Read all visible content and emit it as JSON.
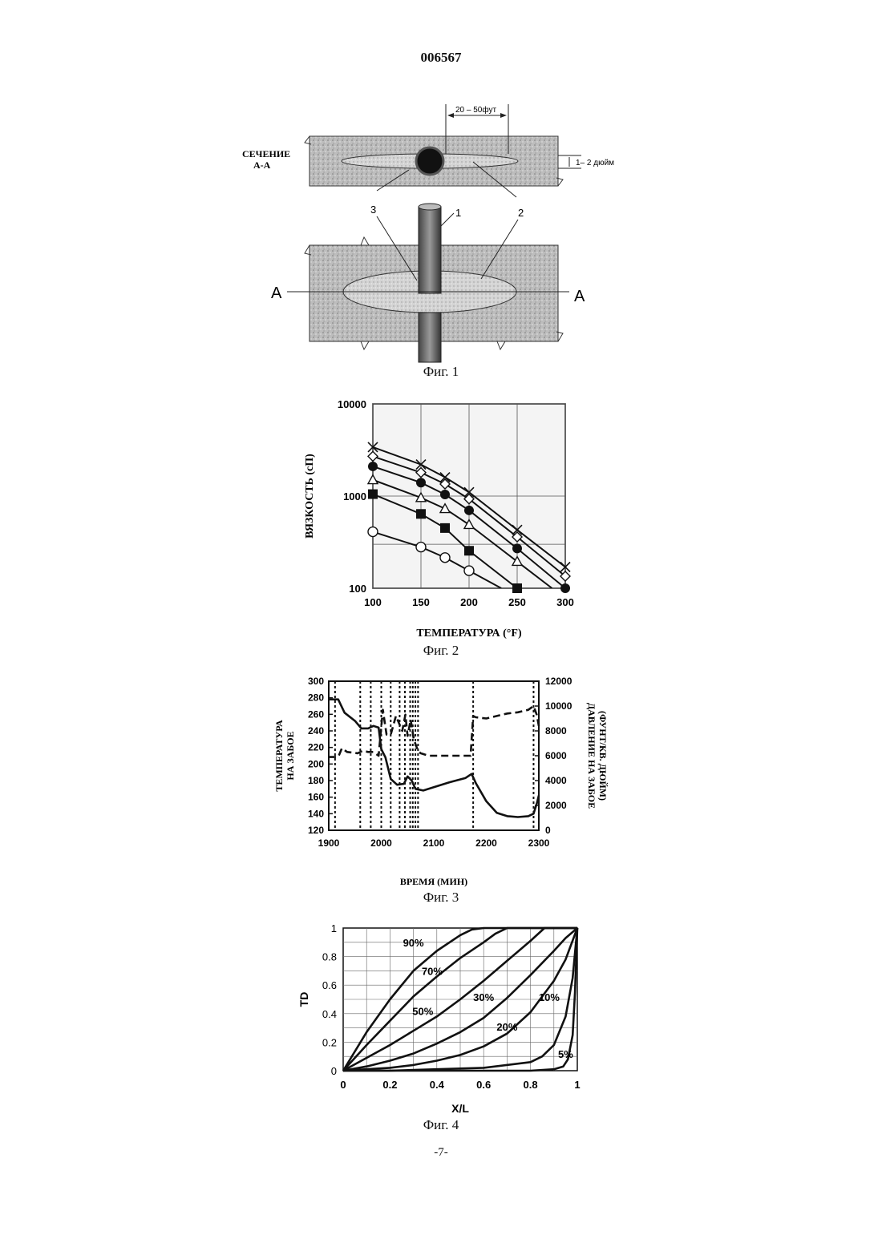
{
  "page": {
    "number": "006567",
    "footer": "-7-"
  },
  "fig1": {
    "caption": "Фиг. 1",
    "section_label": [
      "СЕЧЕНИЕ",
      "А-А"
    ],
    "dim_length": "20 – 50фут",
    "dim_thickness": "1– 2 дюйм",
    "callouts": [
      "1",
      "2",
      "3",
      "2"
    ],
    "section_marks": [
      "A",
      "A"
    ]
  },
  "fig2": {
    "caption": "Фиг. 2",
    "chart_data": {
      "type": "scatter",
      "xlabel": "ТЕМПЕРАТУРА (°F)",
      "ylabel": "ВЯЗКОСТЬ (сП)",
      "xlim": [
        100,
        300
      ],
      "ylim": [
        100,
        10000
      ],
      "yscale": "log",
      "xticks": [
        "100",
        "150",
        "200",
        "250",
        "300"
      ],
      "yticks": [
        "100",
        "1000",
        "10000"
      ],
      "grid": true,
      "series": [
        {
          "marker": "cross",
          "x": [
            100,
            150,
            175,
            200,
            250,
            300
          ],
          "y": [
            3400,
            2200,
            1600,
            1100,
            430,
            170
          ]
        },
        {
          "marker": "diamond-open",
          "x": [
            100,
            150,
            175,
            200,
            250,
            300
          ],
          "y": [
            2700,
            1800,
            1350,
            930,
            360,
            135
          ]
        },
        {
          "marker": "circle-filled",
          "x": [
            100,
            150,
            175,
            200,
            250,
            300
          ],
          "y": [
            2100,
            1400,
            1040,
            700,
            270,
            100
          ]
        },
        {
          "marker": "triangle-open",
          "x": [
            100,
            150,
            175,
            200,
            250
          ],
          "y": [
            1500,
            960,
            730,
            490,
            195
          ]
        },
        {
          "marker": "square-filled",
          "x": [
            100,
            150,
            175,
            200,
            250
          ],
          "y": [
            1050,
            640,
            450,
            255,
            100
          ]
        },
        {
          "marker": "circle-open",
          "x": [
            100,
            150,
            175,
            200
          ],
          "y": [
            410,
            280,
            215,
            155
          ]
        }
      ]
    }
  },
  "fig3": {
    "caption": "Фиг. 3",
    "chart_data": {
      "type": "line",
      "xlabel": "ВРЕМЯ (МИН)",
      "ylabel_left": [
        "ТЕМПЕРАТУРА",
        "НА ЗАБОЕ"
      ],
      "ylabel_right": [
        "ДАВЛЕНИЕ НА ЗАБОЕ",
        "(ФУНТ/КВ. ДЮЙМ)"
      ],
      "xlim": [
        1900,
        2300
      ],
      "ylim_left": [
        120,
        300
      ],
      "ylim_right": [
        0,
        12000
      ],
      "xticks": [
        "1900",
        "2000",
        "2100",
        "2200",
        "2300"
      ],
      "yticks_left": [
        "120",
        "140",
        "160",
        "180",
        "200",
        "220",
        "240",
        "260",
        "280",
        "300"
      ],
      "yticks_right": [
        "0",
        "2000",
        "4000",
        "6000",
        "8000",
        "10000",
        "12000"
      ],
      "event_lines_x": [
        1912,
        1960,
        1980,
        2000,
        2018,
        2035,
        2045,
        2055,
        2060,
        2065,
        2070,
        2175,
        2290
      ],
      "series": [
        {
          "name": "temperature",
          "axis": "left",
          "style": "solid",
          "x": [
            1900,
            1918,
            1930,
            1950,
            1962,
            1975,
            1985,
            1995,
            2000,
            2008,
            2018,
            2030,
            2043,
            2050,
            2058,
            2065,
            2080,
            2100,
            2130,
            2160,
            2172,
            2180,
            2200,
            2220,
            2240,
            2260,
            2280,
            2290,
            2296,
            2300
          ],
          "y": [
            278,
            278,
            262,
            252,
            243,
            243,
            246,
            244,
            218,
            208,
            182,
            175,
            176,
            185,
            180,
            170,
            168,
            172,
            178,
            183,
            188,
            177,
            155,
            141,
            137,
            136,
            137,
            140,
            152,
            162
          ]
        },
        {
          "name": "pressure",
          "axis": "right",
          "style": "dashed",
          "x": [
            1900,
            1918,
            1925,
            1935,
            1955,
            1965,
            1975,
            1985,
            1995,
            2003,
            2010,
            2018,
            2028,
            2040,
            2046,
            2050,
            2056,
            2062,
            2070,
            2075,
            2090,
            2110,
            2140,
            2170,
            2175,
            2180,
            2200,
            2220,
            2240,
            2260,
            2280,
            2290,
            2296,
            2300
          ],
          "y": [
            5900,
            5900,
            6600,
            6300,
            6200,
            6400,
            6300,
            6300,
            6000,
            9700,
            7700,
            7700,
            9200,
            8000,
            9300,
            7600,
            8900,
            7300,
            6400,
            6200,
            6000,
            6000,
            6000,
            6000,
            9200,
            9100,
            9000,
            9200,
            9400,
            9500,
            9700,
            10000,
            9300,
            8400
          ]
        }
      ]
    }
  },
  "fig4": {
    "caption": "Фиг. 4",
    "chart_data": {
      "type": "line",
      "xlabel": "X/L",
      "ylabel": "TD",
      "xlim": [
        0,
        1
      ],
      "ylim": [
        0,
        1
      ],
      "xticks": [
        "0",
        "0.2",
        "0.4",
        "0.6",
        "0.8",
        "1"
      ],
      "yticks": [
        "0",
        "0.2",
        "0.4",
        "0.6",
        "0.8",
        "1"
      ],
      "grid": true,
      "series": [
        {
          "name": "90%",
          "x": [
            0,
            0.1,
            0.2,
            0.3,
            0.4,
            0.5,
            0.55,
            0.6,
            1
          ],
          "y": [
            0,
            0.27,
            0.5,
            0.7,
            0.84,
            0.95,
            0.99,
            1.0,
            1.0
          ]
        },
        {
          "name": "70%",
          "x": [
            0,
            0.1,
            0.2,
            0.3,
            0.4,
            0.5,
            0.6,
            0.65,
            0.7,
            1
          ],
          "y": [
            0,
            0.18,
            0.35,
            0.52,
            0.66,
            0.79,
            0.9,
            0.96,
            1.0,
            1.0
          ]
        },
        {
          "name": "50%",
          "x": [
            0,
            0.1,
            0.2,
            0.3,
            0.4,
            0.5,
            0.6,
            0.7,
            0.8,
            0.86,
            1
          ],
          "y": [
            0,
            0.09,
            0.18,
            0.28,
            0.38,
            0.5,
            0.63,
            0.77,
            0.91,
            1.0,
            1.0
          ]
        },
        {
          "name": "30%",
          "x": [
            0,
            0.1,
            0.2,
            0.3,
            0.4,
            0.5,
            0.6,
            0.7,
            0.8,
            0.9,
            0.95,
            1
          ],
          "y": [
            0,
            0.03,
            0.07,
            0.12,
            0.19,
            0.27,
            0.37,
            0.51,
            0.67,
            0.84,
            0.93,
            1.0
          ]
        },
        {
          "name": "20%",
          "x": [
            0,
            0.1,
            0.2,
            0.3,
            0.4,
            0.5,
            0.6,
            0.7,
            0.8,
            0.9,
            0.95,
            1
          ],
          "y": [
            0,
            0.01,
            0.02,
            0.04,
            0.07,
            0.11,
            0.17,
            0.26,
            0.41,
            0.63,
            0.78,
            1.0
          ]
        },
        {
          "name": "10%",
          "x": [
            0,
            0.2,
            0.4,
            0.6,
            0.8,
            0.85,
            0.9,
            0.95,
            0.98,
            1
          ],
          "y": [
            0,
            0.0,
            0.01,
            0.02,
            0.06,
            0.1,
            0.18,
            0.38,
            0.65,
            1.0
          ]
        },
        {
          "name": "5%",
          "x": [
            0,
            0.4,
            0.8,
            0.9,
            0.94,
            0.96,
            0.98,
            0.99,
            1
          ],
          "y": [
            0,
            0.0,
            0.0,
            0.01,
            0.03,
            0.08,
            0.25,
            0.55,
            1.0
          ]
        }
      ],
      "annotations": [
        "90%",
        "70%",
        "50%",
        "30%",
        "20%",
        "10%",
        "5%"
      ]
    }
  }
}
